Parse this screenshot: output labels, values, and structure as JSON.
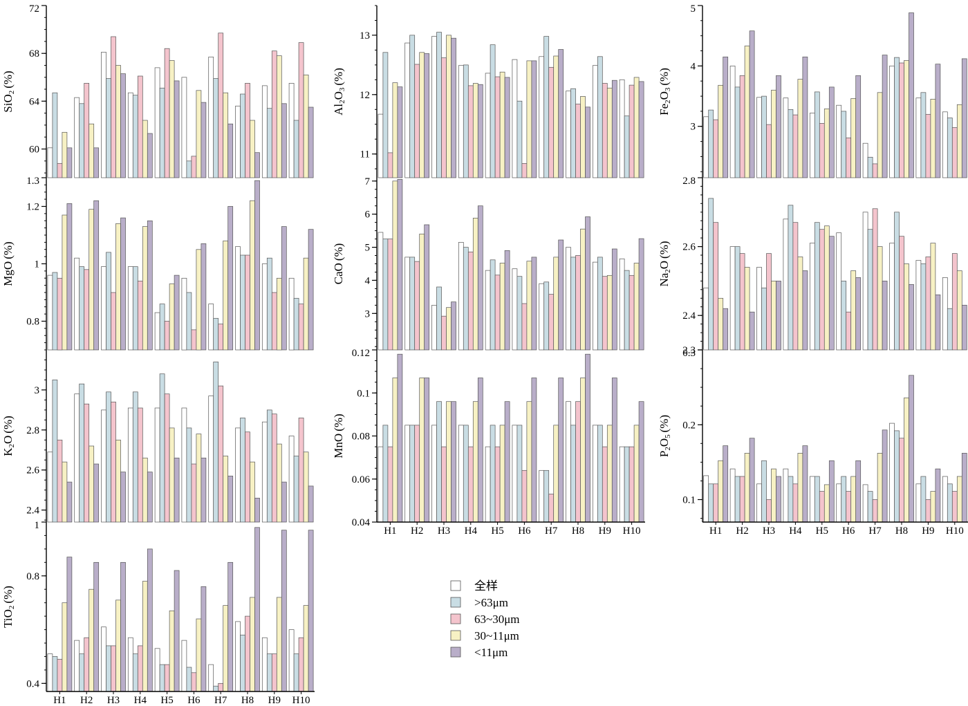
{
  "chart_data": {
    "type": "bar",
    "categories": [
      "H1",
      "H2",
      "H3",
      "H4",
      "H5",
      "H6",
      "H7",
      "H8",
      "H9",
      "H10"
    ],
    "legend": [
      {
        "name": "全样",
        "color": "#ffffff"
      },
      {
        "name": ">63μm",
        "color": "#c9dde4"
      },
      {
        "name": "63~30μm",
        "color": "#f4c4cd"
      },
      {
        "name": "30~11μm",
        "color": "#f7f1c4"
      },
      {
        "name": "<11μm",
        "color": "#b9aec9"
      }
    ],
    "panels": [
      {
        "id": "SiO2",
        "ylabel": "SiO2 (%)",
        "ylim": [
          57.6,
          72
        ],
        "yticks": [
          60,
          64,
          68,
          72
        ],
        "series": [
          {
            "name": "全样",
            "values": [
              60.1,
              64.3,
              68.1,
              64.7,
              66.8,
              66.0,
              67.7,
              63.6,
              65.3,
              65.5
            ]
          },
          {
            "name": ">63μm",
            "values": [
              64.7,
              63.8,
              65.9,
              64.5,
              65.1,
              59.0,
              65.9,
              64.6,
              63.4,
              62.4
            ]
          },
          {
            "name": "63~30μm",
            "values": [
              58.8,
              65.5,
              69.4,
              66.1,
              68.4,
              59.4,
              69.7,
              65.5,
              68.2,
              68.9
            ]
          },
          {
            "name": "30~11μm",
            "values": [
              61.4,
              62.1,
              67.0,
              62.4,
              67.4,
              64.9,
              64.7,
              62.4,
              67.8,
              66.2
            ]
          },
          {
            "name": "<11μm",
            "values": [
              60.1,
              60.1,
              66.3,
              61.3,
              65.7,
              63.9,
              62.1,
              59.7,
              63.8,
              63.5
            ]
          }
        ]
      },
      {
        "id": "Al2O3",
        "ylabel": "Al2O3 (%)",
        "ylim": [
          10.6,
          13.5
        ],
        "yticks": [
          11,
          12,
          13
        ],
        "series": [
          {
            "name": "全样",
            "values": [
              11.67,
              12.87,
              12.98,
              12.49,
              12.36,
              12.59,
              12.64,
              12.06,
              12.49,
              12.25
            ]
          },
          {
            "name": ">63μm",
            "values": [
              12.71,
              13.0,
              13.05,
              12.5,
              12.84,
              11.89,
              12.98,
              12.1,
              12.64,
              11.64
            ]
          },
          {
            "name": "63~30μm",
            "values": [
              11.02,
              12.51,
              12.62,
              12.15,
              12.3,
              10.84,
              12.46,
              11.84,
              12.19,
              12.16
            ]
          },
          {
            "name": "30~11μm",
            "values": [
              12.2,
              12.71,
              13.0,
              12.19,
              12.38,
              12.57,
              12.65,
              11.97,
              12.11,
              12.29
            ]
          },
          {
            "name": "<11μm",
            "values": [
              12.13,
              12.69,
              12.95,
              12.17,
              12.29,
              12.57,
              12.76,
              11.79,
              12.24,
              12.22
            ]
          }
        ]
      },
      {
        "id": "Fe2O3",
        "ylabel": "Fe2O3 (%)",
        "ylim": [
          2.15,
          5
        ],
        "yticks": [
          3,
          4,
          5
        ],
        "series": [
          {
            "name": "全样",
            "values": [
              3.16,
              4.0,
              3.48,
              3.47,
              3.22,
              3.35,
              2.72,
              4.0,
              3.47,
              3.24
            ]
          },
          {
            "name": ">63μm",
            "values": [
              3.27,
              3.65,
              3.5,
              3.28,
              3.57,
              3.25,
              2.49,
              4.14,
              3.56,
              3.14
            ]
          },
          {
            "name": "63~30μm",
            "values": [
              3.11,
              3.84,
              3.03,
              3.19,
              3.05,
              2.81,
              2.38,
              4.05,
              3.2,
              2.98
            ]
          },
          {
            "name": "30~11μm",
            "values": [
              3.68,
              4.33,
              3.6,
              3.78,
              3.29,
              3.46,
              3.56,
              4.09,
              3.45,
              3.36
            ]
          },
          {
            "name": "<11μm",
            "values": [
              4.15,
              4.58,
              3.84,
              4.15,
              3.65,
              3.84,
              4.18,
              4.88,
              4.03,
              4.12
            ]
          }
        ]
      },
      {
        "id": "MgO",
        "ylabel": "MgO (%)",
        "ylim": [
          0.7,
          1.3
        ],
        "yticks": [
          0.8,
          1,
          1.2,
          1.3
        ],
        "series": [
          {
            "name": "全样",
            "values": [
              0.96,
              1.02,
              0.99,
              0.99,
              0.83,
              0.95,
              0.86,
              1.06,
              1.0,
              0.95
            ]
          },
          {
            "name": ">63μm",
            "values": [
              0.97,
              0.99,
              1.04,
              0.99,
              0.86,
              0.9,
              0.81,
              1.03,
              1.02,
              0.88
            ]
          },
          {
            "name": "63~30μm",
            "values": [
              0.95,
              0.98,
              0.9,
              0.94,
              0.8,
              0.77,
              0.79,
              1.03,
              0.9,
              0.86
            ]
          },
          {
            "name": "30~11μm",
            "values": [
              1.17,
              1.19,
              1.14,
              1.13,
              0.93,
              1.05,
              1.08,
              1.22,
              0.95,
              1.02
            ]
          },
          {
            "name": "<11μm",
            "values": [
              1.21,
              1.22,
              1.16,
              1.15,
              0.96,
              1.07,
              1.2,
              1.29,
              1.13,
              1.12
            ]
          }
        ]
      },
      {
        "id": "CaO",
        "ylabel": "CaO (%)",
        "ylim": [
          1.9,
          7.1
        ],
        "yticks": [
          3,
          4,
          5,
          6,
          7
        ],
        "series": [
          {
            "name": "全样",
            "values": [
              5.45,
              4.7,
              3.25,
              5.15,
              4.3,
              4.35,
              3.9,
              5.0,
              4.55,
              4.65
            ]
          },
          {
            "name": ">63μm",
            "values": [
              5.25,
              4.7,
              3.8,
              5.0,
              4.62,
              4.12,
              3.95,
              4.7,
              4.7,
              4.3
            ]
          },
          {
            "name": "63~30μm",
            "values": [
              5.25,
              4.57,
              2.92,
              4.86,
              4.16,
              3.3,
              3.58,
              4.75,
              4.12,
              4.15
            ]
          },
          {
            "name": "30~11μm",
            "values": [
              7.0,
              5.4,
              3.18,
              5.88,
              4.52,
              4.58,
              4.7,
              5.55,
              4.15,
              4.52
            ]
          },
          {
            "name": "<11μm",
            "values": [
              7.05,
              5.68,
              3.35,
              6.25,
              4.9,
              4.7,
              5.22,
              5.92,
              4.95,
              5.26
            ]
          }
        ]
      },
      {
        "id": "Na2O",
        "ylabel": "Na2O (%)",
        "ylim": [
          2.3,
          2.8
        ],
        "yticks": [
          2.3,
          2.4,
          2.6,
          2.8
        ],
        "series": [
          {
            "name": "全样",
            "values": [
              2.48,
              2.6,
              2.54,
              2.68,
              2.61,
              2.64,
              2.7,
              2.61,
              2.56,
              2.51
            ]
          },
          {
            "name": ">63μm",
            "values": [
              2.74,
              2.6,
              2.48,
              2.72,
              2.67,
              2.5,
              2.65,
              2.7,
              2.55,
              2.42
            ]
          },
          {
            "name": "63~30μm",
            "values": [
              2.67,
              2.58,
              2.58,
              2.67,
              2.65,
              2.41,
              2.71,
              2.63,
              2.57,
              2.58
            ]
          },
          {
            "name": "30~11μm",
            "values": [
              2.45,
              2.54,
              2.5,
              2.57,
              2.66,
              2.53,
              2.6,
              2.55,
              2.61,
              2.53
            ]
          },
          {
            "name": "<11μm",
            "values": [
              2.42,
              2.41,
              2.5,
              2.53,
              2.63,
              2.51,
              2.5,
              2.49,
              2.46,
              2.43
            ]
          }
        ]
      },
      {
        "id": "K2O",
        "ylabel": "K2O (%)",
        "ylim": [
          2.34,
          3.2
        ],
        "yticks": [
          2.4,
          2.6,
          2.8,
          3
        ],
        "series": [
          {
            "name": "全样",
            "values": [
              2.69,
              2.98,
              2.9,
              2.91,
              2.91,
              2.91,
              2.97,
              2.81,
              2.84,
              2.77
            ]
          },
          {
            "name": ">63μm",
            "values": [
              3.05,
              3.03,
              2.99,
              2.99,
              3.08,
              2.81,
              3.14,
              2.86,
              2.9,
              2.67
            ]
          },
          {
            "name": "63~30μm",
            "values": [
              2.75,
              2.93,
              2.94,
              2.91,
              2.98,
              2.63,
              3.02,
              2.79,
              2.88,
              2.86
            ]
          },
          {
            "name": "30~11μm",
            "values": [
              2.64,
              2.72,
              2.75,
              2.66,
              2.81,
              2.78,
              2.67,
              2.64,
              2.73,
              2.69
            ]
          },
          {
            "name": "<11μm",
            "values": [
              2.54,
              2.63,
              2.59,
              2.59,
              2.66,
              2.66,
              2.57,
              2.46,
              2.54,
              2.52
            ]
          }
        ]
      },
      {
        "id": "MnO",
        "ylabel": "MnO (%)",
        "ylim": [
          0.04,
          0.12
        ],
        "yticks": [
          0.04,
          0.06,
          0.08,
          0.1,
          0.12
        ],
        "series": [
          {
            "name": "全样",
            "values": [
              0.075,
              0.085,
              0.085,
              0.085,
              0.075,
              0.085,
              0.064,
              0.096,
              0.085,
              0.075
            ]
          },
          {
            "name": ">63μm",
            "values": [
              0.085,
              0.085,
              0.096,
              0.085,
              0.085,
              0.085,
              0.064,
              0.085,
              0.085,
              0.075
            ]
          },
          {
            "name": "63~30μm",
            "values": [
              0.075,
              0.085,
              0.075,
              0.075,
              0.075,
              0.064,
              0.053,
              0.096,
              0.075,
              0.075
            ]
          },
          {
            "name": "30~11μm",
            "values": [
              0.107,
              0.107,
              0.096,
              0.096,
              0.085,
              0.096,
              0.085,
              0.107,
              0.085,
              0.085
            ]
          },
          {
            "name": "<11μm",
            "values": [
              0.118,
              0.107,
              0.096,
              0.107,
              0.096,
              0.107,
              0.107,
              0.118,
              0.107,
              0.096
            ]
          }
        ]
      },
      {
        "id": "P2O5",
        "ylabel": "P2O5 (%)",
        "ylim": [
          0.07,
          0.3
        ],
        "yticks": [
          0.1,
          0.2,
          0.3
        ],
        "series": [
          {
            "name": "全样",
            "values": [
              0.132,
              0.141,
              0.121,
              0.141,
              0.131,
              0.121,
              0.12,
              0.202,
              0.121,
              0.131
            ]
          },
          {
            "name": ">63μm",
            "values": [
              0.121,
              0.131,
              0.152,
              0.131,
              0.131,
              0.131,
              0.111,
              0.192,
              0.131,
              0.121
            ]
          },
          {
            "name": "63~30μm",
            "values": [
              0.121,
              0.131,
              0.1,
              0.121,
              0.111,
              0.111,
              0.1,
              0.182,
              0.1,
              0.111
            ]
          },
          {
            "name": "30~11μm",
            "values": [
              0.152,
              0.162,
              0.141,
              0.162,
              0.12,
              0.131,
              0.162,
              0.236,
              0.111,
              0.131
            ]
          },
          {
            "name": "<11μm",
            "values": [
              0.172,
              0.182,
              0.131,
              0.172,
              0.152,
              0.152,
              0.193,
              0.266,
              0.141,
              0.162
            ]
          }
        ]
      },
      {
        "id": "TiO2",
        "ylabel": "TiO2 (%)",
        "ylim": [
          0.37,
          1
        ],
        "yticks": [
          0.4,
          0.8,
          1
        ],
        "series": [
          {
            "name": "全样",
            "values": [
              0.51,
              0.56,
              0.61,
              0.57,
              0.53,
              0.56,
              0.47,
              0.63,
              0.57,
              0.6
            ]
          },
          {
            "name": ">63μm",
            "values": [
              0.5,
              0.51,
              0.54,
              0.51,
              0.47,
              0.46,
              0.39,
              0.58,
              0.51,
              0.51
            ]
          },
          {
            "name": "63~30μm",
            "values": [
              0.49,
              0.57,
              0.54,
              0.54,
              0.47,
              0.44,
              0.4,
              0.65,
              0.51,
              0.57
            ]
          },
          {
            "name": "30~11μm",
            "values": [
              0.7,
              0.75,
              0.71,
              0.78,
              0.67,
              0.64,
              0.69,
              0.72,
              0.72,
              0.69
            ]
          },
          {
            "name": "<11μm",
            "values": [
              0.87,
              0.85,
              0.85,
              0.9,
              0.82,
              0.76,
              0.85,
              0.98,
              0.97,
              0.97
            ]
          }
        ]
      }
    ]
  }
}
